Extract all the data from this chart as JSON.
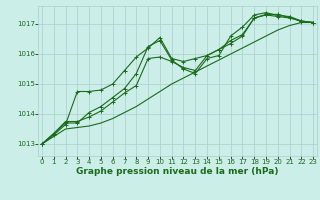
{
  "title": "Graphe pression niveau de la mer (hPa)",
  "background_color": "#cceee8",
  "grid_color": "#aacccc",
  "line_color": "#1a6b1a",
  "x_ticks": [
    0,
    1,
    2,
    3,
    4,
    5,
    6,
    7,
    8,
    9,
    10,
    11,
    12,
    13,
    14,
    15,
    16,
    17,
    18,
    19,
    20,
    21,
    22,
    23
  ],
  "ylim": [
    1012.6,
    1017.6
  ],
  "y_ticks": [
    1013,
    1014,
    1015,
    1016,
    1017
  ],
  "series": [
    [
      1013.0,
      1013.35,
      1013.75,
      1013.75,
      1013.9,
      1014.1,
      1014.4,
      1014.7,
      1014.95,
      1015.85,
      1015.9,
      1015.75,
      1015.55,
      1015.45,
      1015.95,
      1016.15,
      1016.45,
      1016.65,
      1017.2,
      1017.3,
      1017.25,
      1017.2,
      1017.1,
      1017.05
    ],
    [
      1013.0,
      1013.35,
      1013.7,
      1013.7,
      1014.05,
      1014.25,
      1014.55,
      1014.85,
      1015.35,
      1016.25,
      1016.45,
      1015.8,
      1015.5,
      1015.35,
      1015.85,
      1015.95,
      1016.6,
      1016.9,
      1017.3,
      1017.38,
      1017.28,
      1017.25,
      1017.1,
      1017.05
    ],
    [
      1013.0,
      1013.3,
      1013.65,
      1014.75,
      1014.75,
      1014.8,
      1015.0,
      1015.45,
      1015.9,
      1016.2,
      1016.55,
      1015.85,
      1015.75,
      1015.85,
      1015.95,
      1016.15,
      1016.35,
      1016.6,
      1017.2,
      1017.32,
      1017.32,
      1017.22,
      1017.08,
      1017.05
    ],
    [
      1013.0,
      1013.25,
      1013.5,
      1013.55,
      1013.6,
      1013.7,
      1013.85,
      1014.05,
      1014.25,
      1014.5,
      1014.75,
      1015.0,
      1015.2,
      1015.4,
      1015.6,
      1015.8,
      1016.0,
      1016.2,
      1016.4,
      1016.6,
      1016.8,
      1016.95,
      1017.05,
      1017.05
    ]
  ],
  "marker": "+",
  "markersize": 3.5,
  "linewidth": 0.8,
  "tick_labelsize": 5,
  "xlabel_fontsize": 6.5
}
